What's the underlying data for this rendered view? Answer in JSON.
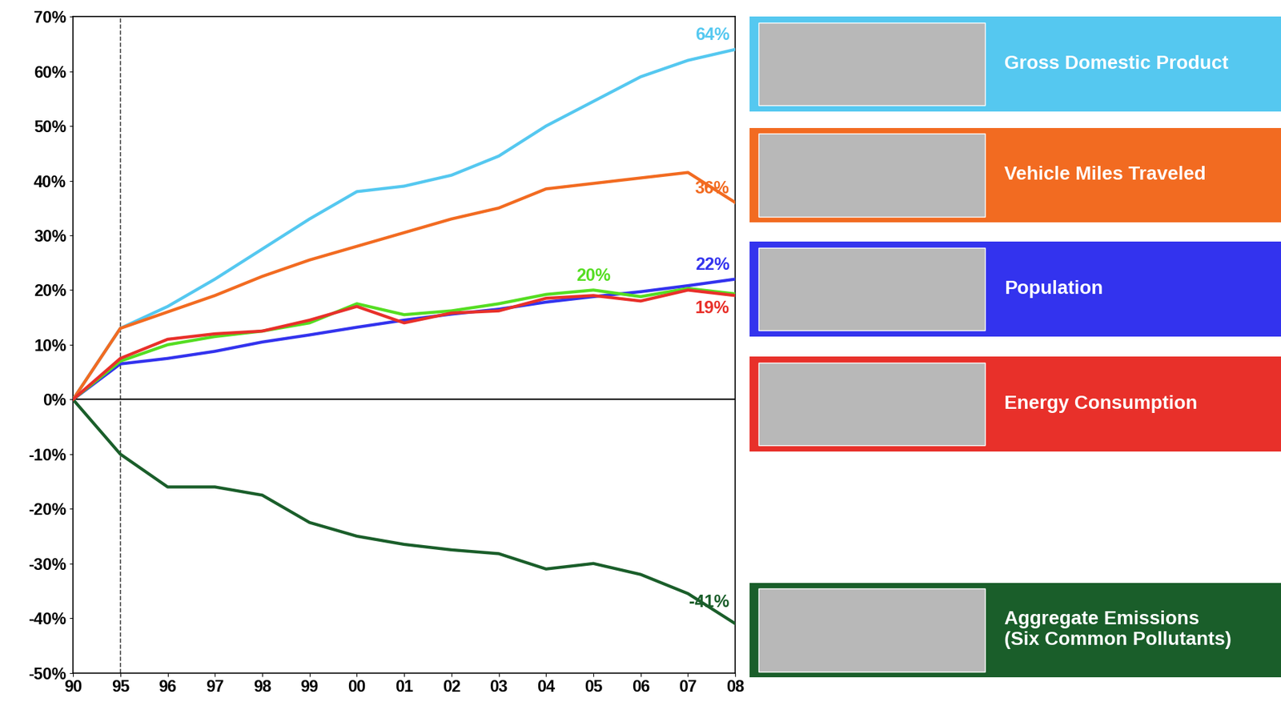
{
  "chart_data": {
    "type": "line",
    "categories": [
      "90",
      "95",
      "96",
      "97",
      "98",
      "99",
      "00",
      "01",
      "02",
      "03",
      "04",
      "05",
      "06",
      "07",
      "08"
    ],
    "ylim": [
      -50,
      70
    ],
    "yticks": [
      {
        "value": -50,
        "label": "-50%"
      },
      {
        "value": -40,
        "label": "-40%"
      },
      {
        "value": -30,
        "label": "-30%"
      },
      {
        "value": -20,
        "label": "-20%"
      },
      {
        "value": -10,
        "label": "-10%"
      },
      {
        "value": 0,
        "label": "0%"
      },
      {
        "value": 10,
        "label": "10%"
      },
      {
        "value": 20,
        "label": "20%"
      },
      {
        "value": 30,
        "label": "30%"
      },
      {
        "value": 40,
        "label": "40%"
      },
      {
        "value": 50,
        "label": "50%"
      },
      {
        "value": 60,
        "label": "60%"
      },
      {
        "value": 70,
        "label": "70%"
      }
    ],
    "grid": false,
    "series": [
      {
        "name": "Gross Domestic Product",
        "color": "#55c8f0",
        "values": [
          0,
          13,
          17,
          22,
          27.5,
          33,
          38,
          39,
          41,
          44.5,
          50,
          54.5,
          59,
          62,
          64
        ],
        "end_label": "64%",
        "end_label_at": "08"
      },
      {
        "name": "Vehicle Miles Traveled",
        "color": "#f26b21",
        "values": [
          0,
          13,
          16,
          19,
          22.5,
          25.5,
          28,
          30.5,
          33,
          35,
          38.5,
          39.5,
          40.5,
          41.5,
          36
        ],
        "end_label": "36%",
        "end_label_at": "08"
      },
      {
        "name": "Population",
        "color": "#3333ee",
        "values": [
          0,
          6.5,
          7.5,
          8.8,
          10.5,
          11.8,
          13.2,
          14.5,
          15.6,
          16.5,
          17.8,
          18.8,
          19.7,
          20.8,
          22
        ],
        "end_label": "22%",
        "end_label_at": "08"
      },
      {
        "name": null,
        "color": "#55dd22",
        "values": [
          0,
          7,
          10,
          11.5,
          12.5,
          14,
          17.5,
          15.5,
          16.2,
          17.5,
          19.2,
          20,
          18.8,
          20.3,
          19.3
        ],
        "end_label": "20%",
        "end_label_at": "05"
      },
      {
        "name": "Energy Consumption",
        "color": "#e8302a",
        "values": [
          0,
          7.5,
          11,
          12,
          12.5,
          14.5,
          17,
          14,
          15.8,
          16.2,
          18.5,
          19,
          18,
          20,
          19
        ],
        "end_label": "19%",
        "end_label_at": "08"
      },
      {
        "name": "Aggregate Emissions\n(Six Common Pollutants)",
        "color": "#1a5e2a",
        "values": [
          0,
          -10,
          -16,
          -16,
          -17.5,
          -22.5,
          -25,
          -26.5,
          -27.5,
          -28.2,
          -31,
          -30,
          -32,
          -35.5,
          -41
        ],
        "end_label": "-41%",
        "end_label_at": "08"
      }
    ]
  }
}
